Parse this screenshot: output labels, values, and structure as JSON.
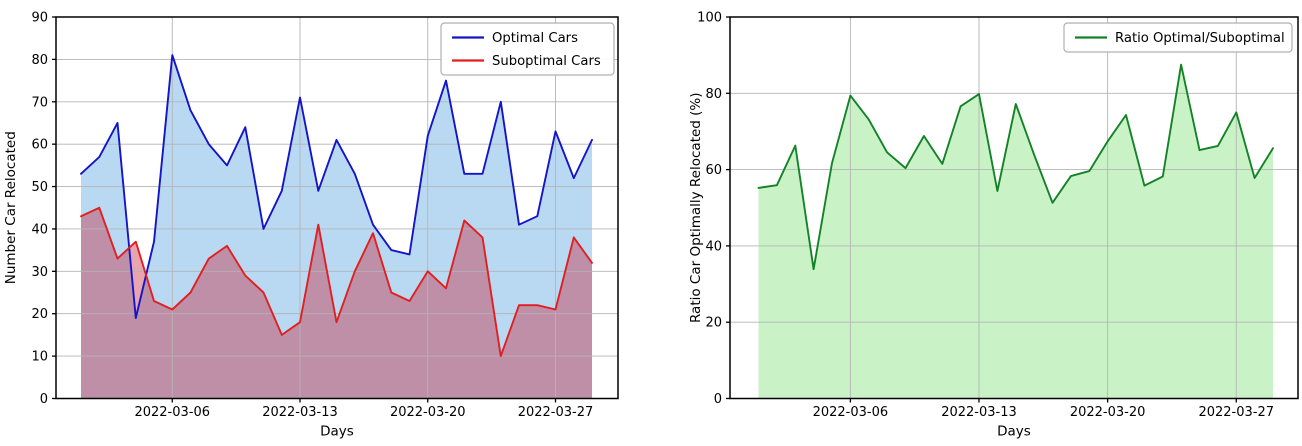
{
  "figure": {
    "description": "Two matplotlib line/area charts: daily relocated cars (optimal vs suboptimal) and their ratio"
  },
  "chart_data": [
    {
      "type": "area",
      "title": "",
      "xlabel": "Days",
      "ylabel": "Number Car Relocated",
      "ylim": [
        0,
        90
      ],
      "yticks": [
        0,
        10,
        20,
        30,
        40,
        50,
        60,
        70,
        80,
        90
      ],
      "grid": true,
      "legend_position": "upper right",
      "x_dates": [
        "2022-03-01",
        "2022-03-02",
        "2022-03-03",
        "2022-03-04",
        "2022-03-05",
        "2022-03-06",
        "2022-03-07",
        "2022-03-08",
        "2022-03-09",
        "2022-03-10",
        "2022-03-11",
        "2022-03-12",
        "2022-03-13",
        "2022-03-14",
        "2022-03-15",
        "2022-03-16",
        "2022-03-17",
        "2022-03-18",
        "2022-03-19",
        "2022-03-20",
        "2022-03-21",
        "2022-03-22",
        "2022-03-23",
        "2022-03-24",
        "2022-03-25",
        "2022-03-26",
        "2022-03-27",
        "2022-03-28",
        "2022-03-29"
      ],
      "xtick_labels": [
        "2022-03-06",
        "2022-03-13",
        "2022-03-20",
        "2022-03-27"
      ],
      "xtick_indices": [
        5,
        12,
        19,
        26
      ],
      "series": [
        {
          "name": "Optimal Cars",
          "line_color": "#1414c8",
          "fill_color": "#b9d9f2",
          "values": [
            53,
            57,
            65,
            19,
            37,
            81,
            68,
            60,
            55,
            64,
            40,
            49,
            71,
            49,
            61,
            53,
            41,
            35,
            34,
            62,
            75,
            53,
            53,
            70,
            41,
            43,
            63,
            52,
            61
          ]
        },
        {
          "name": "Suboptimal Cars",
          "line_color": "#e02020",
          "fill_color": "rgba(200,30,55,0.40)",
          "values": [
            43,
            45,
            33,
            37,
            23,
            21,
            25,
            33,
            36,
            29,
            25,
            15,
            18,
            41,
            18,
            30,
            39,
            25,
            23,
            30,
            26,
            42,
            38,
            10,
            22,
            22,
            21,
            38,
            32
          ]
        }
      ]
    },
    {
      "type": "area",
      "title": "",
      "xlabel": "Days",
      "ylabel": "Ratio Car Optimally Relocated (%)",
      "ylim": [
        0,
        100
      ],
      "yticks": [
        0,
        20,
        40,
        60,
        80,
        100
      ],
      "grid": true,
      "legend_position": "upper right",
      "x_dates": [
        "2022-03-01",
        "2022-03-02",
        "2022-03-03",
        "2022-03-04",
        "2022-03-05",
        "2022-03-06",
        "2022-03-07",
        "2022-03-08",
        "2022-03-09",
        "2022-03-10",
        "2022-03-11",
        "2022-03-12",
        "2022-03-13",
        "2022-03-14",
        "2022-03-15",
        "2022-03-16",
        "2022-03-17",
        "2022-03-18",
        "2022-03-19",
        "2022-03-20",
        "2022-03-21",
        "2022-03-22",
        "2022-03-23",
        "2022-03-24",
        "2022-03-25",
        "2022-03-26",
        "2022-03-27",
        "2022-03-28",
        "2022-03-29"
      ],
      "xtick_labels": [
        "2022-03-06",
        "2022-03-13",
        "2022-03-20",
        "2022-03-27"
      ],
      "xtick_indices": [
        5,
        12,
        19,
        26
      ],
      "series": [
        {
          "name": "Ratio Optimal/Suboptimal",
          "line_color": "#148228",
          "fill_color": "#c9f3c7",
          "values": [
            55.2,
            55.9,
            66.3,
            33.9,
            61.7,
            79.4,
            73.1,
            64.5,
            60.4,
            68.8,
            61.5,
            76.6,
            79.8,
            54.4,
            77.2,
            63.9,
            51.3,
            58.3,
            59.6,
            67.4,
            74.3,
            55.8,
            58.2,
            87.5,
            65.1,
            66.2,
            75.0,
            57.8,
            65.6
          ]
        }
      ]
    }
  ],
  "style": {
    "grid_color": "#b4b4b4",
    "spine_color": "#000000",
    "legend_border_color": "#b0b0b0",
    "background": "#ffffff"
  }
}
